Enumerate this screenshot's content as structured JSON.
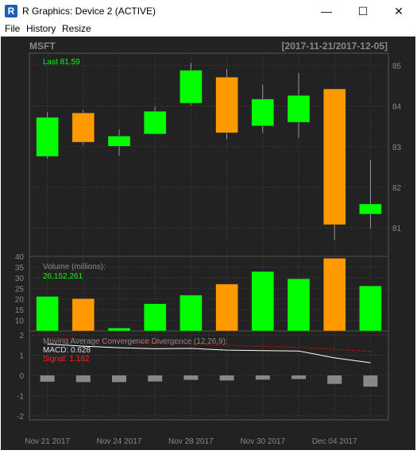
{
  "window": {
    "title": "R Graphics: Device 2 (ACTIVE)",
    "minimize_glyph": "—",
    "maximize_glyph": "☐",
    "close_glyph": "✕"
  },
  "menu": {
    "file": "File",
    "history": "History",
    "resize": "Resize"
  },
  "chart": {
    "symbol": "MSFT",
    "date_range": "[2017-11-21/2017-12-05]",
    "last_label": "Last 81.59",
    "volume_label": "Volume (millions):",
    "volume_value": "26,152,261",
    "macd_label": "Moving Average Convergence Divergence (12,26,9):",
    "macd_value_label": "MACD: 0.628",
    "signal_value_label": "Signal: 1.182",
    "colors": {
      "up": "#00ff00",
      "down": "#ff9900",
      "background": "#222222",
      "grid": "#444444",
      "macd_line": "#ffffff",
      "signal_line": "#ff0000",
      "hist": "#888888"
    }
  },
  "chart_data": [
    {
      "type": "candlestick",
      "title": "MSFT",
      "ylim": [
        80.3,
        85.3
      ],
      "y_ticks": [
        81,
        82,
        83,
        84,
        85
      ],
      "series": [
        {
          "date": "2017-11-21",
          "open": 82.76,
          "high": 83.85,
          "low": 82.7,
          "close": 83.72
        },
        {
          "date": "2017-11-22",
          "open": 83.83,
          "high": 83.9,
          "low": 83.04,
          "close": 83.11
        },
        {
          "date": "2017-11-24",
          "open": 83.01,
          "high": 83.43,
          "low": 82.78,
          "close": 83.26
        },
        {
          "date": "2017-11-27",
          "open": 83.31,
          "high": 83.98,
          "low": 83.3,
          "close": 83.87
        },
        {
          "date": "2017-11-28",
          "open": 84.07,
          "high": 85.06,
          "low": 84.02,
          "close": 84.88
        },
        {
          "date": "2017-11-29",
          "open": 84.71,
          "high": 84.91,
          "low": 83.18,
          "close": 83.34
        },
        {
          "date": "2017-11-30",
          "open": 83.51,
          "high": 84.52,
          "low": 83.34,
          "close": 84.17
        },
        {
          "date": "2017-12-01",
          "open": 83.6,
          "high": 84.81,
          "low": 83.22,
          "close": 84.26
        },
        {
          "date": "2017-12-04",
          "open": 84.42,
          "high": 84.43,
          "low": 80.7,
          "close": 81.08
        },
        {
          "date": "2017-12-05",
          "open": 81.34,
          "high": 82.68,
          "low": 80.98,
          "close": 81.59
        }
      ]
    },
    {
      "type": "bar",
      "title": "Volume (millions):",
      "ylim": [
        5,
        40
      ],
      "y_ticks": [
        10,
        15,
        20,
        25,
        30,
        35,
        40
      ],
      "values": [
        21.2,
        20.2,
        6.4,
        17.8,
        21.8,
        27.0,
        32.9,
        29.5,
        39.1,
        26.15
      ],
      "up": [
        true,
        false,
        true,
        true,
        true,
        false,
        true,
        true,
        false,
        true
      ]
    },
    {
      "type": "line",
      "title": "Moving Average Convergence Divergence (12,26,9):",
      "ylim": [
        -2.2,
        2.2
      ],
      "y_ticks": [
        -2,
        -1,
        0,
        1,
        2
      ],
      "series": [
        {
          "name": "MACD",
          "values": [
            1.55,
            1.45,
            1.37,
            1.32,
            1.34,
            1.25,
            1.23,
            1.21,
            0.87,
            0.628
          ]
        },
        {
          "name": "Signal",
          "values": [
            1.86,
            1.78,
            1.7,
            1.62,
            1.56,
            1.5,
            1.44,
            1.39,
            1.29,
            1.182
          ]
        }
      ],
      "histogram": [
        -0.31,
        -0.33,
        -0.33,
        -0.3,
        -0.22,
        -0.25,
        -0.21,
        -0.18,
        -0.42,
        -0.554
      ],
      "x_ticks": [
        "Nov 21 2017",
        "Nov 24 2017",
        "Nov 28 2017",
        "Nov 30 2017",
        "Dec 04 2017"
      ]
    }
  ]
}
